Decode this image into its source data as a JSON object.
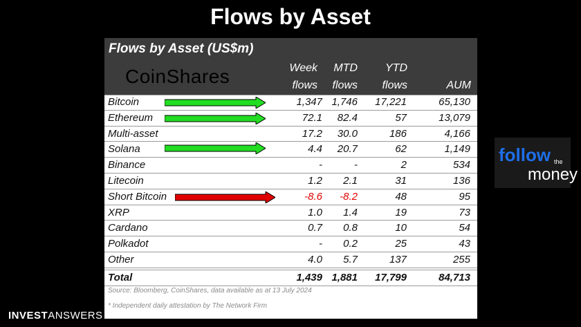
{
  "page_title": "Flows by Asset",
  "table": {
    "title": "Flows by Asset (US$m)",
    "brand": "CoinShares",
    "headers": {
      "week": [
        "Week",
        "flows"
      ],
      "mtd": [
        "MTD",
        "flows"
      ],
      "ytd": [
        "YTD",
        "flows"
      ],
      "aum": "AUM"
    },
    "rows": [
      {
        "name": "Bitcoin",
        "week": "1,347",
        "mtd": "1,746",
        "ytd": "17,221",
        "aum": "65,130"
      },
      {
        "name": "Ethereum",
        "week": "72.1",
        "mtd": "82.4",
        "ytd": "57",
        "aum": "13,079"
      },
      {
        "name": "Multi-asset",
        "week": "17.2",
        "mtd": "30.0",
        "ytd": "186",
        "aum": "4,166"
      },
      {
        "name": "Solana",
        "week": "4.4",
        "mtd": "20.7",
        "ytd": "62",
        "aum": "1,149"
      },
      {
        "name": "Binance",
        "week": "-",
        "mtd": "-",
        "ytd": "2",
        "aum": "534"
      },
      {
        "name": "Litecoin",
        "week": "1.2",
        "mtd": "2.1",
        "ytd": "31",
        "aum": "136"
      },
      {
        "name": "Short Bitcoin",
        "week": "-8.6",
        "mtd": "-8.2",
        "ytd": "48",
        "aum": "95"
      },
      {
        "name": "XRP",
        "week": "1.0",
        "mtd": "1.4",
        "ytd": "19",
        "aum": "73"
      },
      {
        "name": "Cardano",
        "week": "0.7",
        "mtd": "0.8",
        "ytd": "10",
        "aum": "54"
      },
      {
        "name": "Polkadot",
        "week": "-",
        "mtd": "0.2",
        "ytd": "25",
        "aum": "43"
      },
      {
        "name": "Other",
        "week": "4.0",
        "mtd": "5.7",
        "ytd": "137",
        "aum": "255"
      }
    ],
    "total": {
      "name": "Total",
      "week": "1,439",
      "mtd": "1,881",
      "ytd": "17,799",
      "aum": "84,713"
    },
    "source": "Source: Bloomberg, CoinShares, data available as at 13 July 2024",
    "footnote": "* Independent daily attestation by The Network Firm"
  },
  "colors": {
    "negative": "#e00000",
    "arrow_green": "#22dd22",
    "arrow_red": "#e00000",
    "follow_blue": "#1e6fe8"
  },
  "follow_logo": {
    "follow": "follow",
    "the": "the",
    "money": "money"
  },
  "watermark": {
    "bold": "INVEST",
    "light": "ANSWERS"
  }
}
